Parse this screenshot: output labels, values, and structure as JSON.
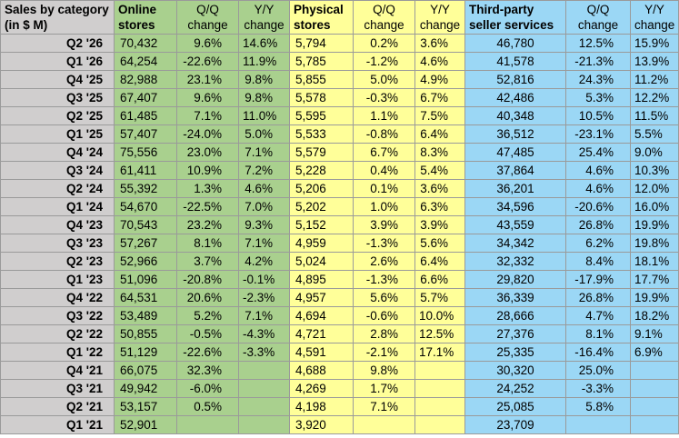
{
  "header": {
    "label": [
      "Sales by category",
      "(in $ M)"
    ],
    "online": [
      "Online",
      "stores"
    ],
    "physical": [
      "Physical",
      "stores"
    ],
    "third": [
      "Third-party",
      "seller services"
    ],
    "qq": [
      "Q/Q",
      "change"
    ],
    "yy": [
      "Y/Y",
      "change"
    ]
  },
  "rows": [
    [
      "Q2 '26",
      "70,432",
      "9.6%",
      "14.6%",
      "5,794",
      "0.2%",
      "3.6%",
      "46,780",
      "12.5%",
      "15.9%"
    ],
    [
      "Q1 '26",
      "64,254",
      "-22.6%",
      "11.9%",
      "5,785",
      "-1.2%",
      "4.6%",
      "41,578",
      "-21.3%",
      "13.9%"
    ],
    [
      "Q4 '25",
      "82,988",
      "23.1%",
      "9.8%",
      "5,855",
      "5.0%",
      "4.9%",
      "52,816",
      "24.3%",
      "11.2%"
    ],
    [
      "Q3 '25",
      "67,407",
      "9.6%",
      "9.8%",
      "5,578",
      "-0.3%",
      "6.7%",
      "42,486",
      "5.3%",
      "12.2%"
    ],
    [
      "Q2 '25",
      "61,485",
      "7.1%",
      "11.0%",
      "5,595",
      "1.1%",
      "7.5%",
      "40,348",
      "10.5%",
      "11.5%"
    ],
    [
      "Q1 '25",
      "57,407",
      "-24.0%",
      "5.0%",
      "5,533",
      "-0.8%",
      "6.4%",
      "36,512",
      "-23.1%",
      "5.5%"
    ],
    [
      "Q4 '24",
      "75,556",
      "23.0%",
      "7.1%",
      "5,579",
      "6.7%",
      "8.3%",
      "47,485",
      "25.4%",
      "9.0%"
    ],
    [
      "Q3 '24",
      "61,411",
      "10.9%",
      "7.2%",
      "5,228",
      "0.4%",
      "5.4%",
      "37,864",
      "4.6%",
      "10.3%"
    ],
    [
      "Q2 '24",
      "55,392",
      "1.3%",
      "4.6%",
      "5,206",
      "0.1%",
      "3.6%",
      "36,201",
      "4.6%",
      "12.0%"
    ],
    [
      "Q1 '24",
      "54,670",
      "-22.5%",
      "7.0%",
      "5,202",
      "1.0%",
      "6.3%",
      "34,596",
      "-20.6%",
      "16.0%"
    ],
    [
      "Q4 '23",
      "70,543",
      "23.2%",
      "9.3%",
      "5,152",
      "3.9%",
      "3.9%",
      "43,559",
      "26.8%",
      "19.9%"
    ],
    [
      "Q3 '23",
      "57,267",
      "8.1%",
      "7.1%",
      "4,959",
      "-1.3%",
      "5.6%",
      "34,342",
      "6.2%",
      "19.8%"
    ],
    [
      "Q2 '23",
      "52,966",
      "3.7%",
      "4.2%",
      "5,024",
      "2.6%",
      "6.4%",
      "32,332",
      "8.4%",
      "18.1%"
    ],
    [
      "Q1 '23",
      "51,096",
      "-20.8%",
      "-0.1%",
      "4,895",
      "-1.3%",
      "6.6%",
      "29,820",
      "-17.9%",
      "17.7%"
    ],
    [
      "Q4 '22",
      "64,531",
      "20.6%",
      "-2.3%",
      "4,957",
      "5.6%",
      "5.7%",
      "36,339",
      "26.8%",
      "19.9%"
    ],
    [
      "Q3 '22",
      "53,489",
      "5.2%",
      "7.1%",
      "4,694",
      "-0.6%",
      "10.0%",
      "28,666",
      "4.7%",
      "18.2%"
    ],
    [
      "Q2 '22",
      "50,855",
      "-0.5%",
      "-4.3%",
      "4,721",
      "2.8%",
      "12.5%",
      "27,376",
      "8.1%",
      "9.1%"
    ],
    [
      "Q1 '22",
      "51,129",
      "-22.6%",
      "-3.3%",
      "4,591",
      "-2.1%",
      "17.1%",
      "25,335",
      "-16.4%",
      "6.9%"
    ],
    [
      "Q4 '21",
      "66,075",
      "32.3%",
      "",
      "4,688",
      "9.8%",
      "",
      "30,320",
      "25.0%",
      ""
    ],
    [
      "Q3 '21",
      "49,942",
      "-6.0%",
      "",
      "4,269",
      "1.7%",
      "",
      "24,252",
      "-3.3%",
      ""
    ],
    [
      "Q2 '21",
      "53,157",
      "0.5%",
      "",
      "4,198",
      "7.1%",
      "",
      "25,085",
      "5.8%",
      ""
    ],
    [
      "Q1 '21",
      "52,901",
      "",
      "",
      "3,920",
      "",
      "",
      "23,709",
      "",
      ""
    ]
  ]
}
